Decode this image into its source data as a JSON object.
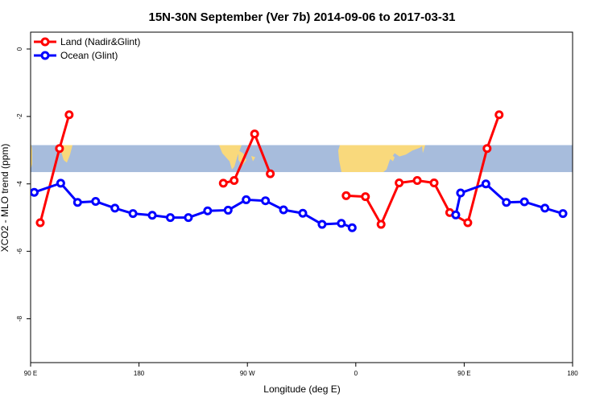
{
  "chart_data": {
    "type": "line",
    "title": "15N-30N September (Ver 7b)   2014-09-06 to 2017-03-31",
    "xlabel": "Longitude (deg E)",
    "ylabel": "XCO2 - MLO trend (ppm)",
    "xlim": [
      90,
      540
    ],
    "ylim": [
      -9.3,
      0.5
    ],
    "xticks": [
      {
        "value": 90,
        "label": "90 E"
      },
      {
        "value": 180,
        "label": "180"
      },
      {
        "value": 270,
        "label": "90 W"
      },
      {
        "value": 360,
        "label": "0"
      },
      {
        "value": 450,
        "label": "90 E"
      },
      {
        "value": 540,
        "label": "180"
      }
    ],
    "yticks": [
      {
        "value": 0,
        "label": "0"
      },
      {
        "value": -2,
        "label": "-2"
      },
      {
        "value": -4,
        "label": "-4"
      },
      {
        "value": -6,
        "label": "-6"
      },
      {
        "value": -8,
        "label": "-8"
      }
    ],
    "legend_position": "top-left",
    "map_band": {
      "y_top": -2.85,
      "y_bottom": -3.65,
      "ocean_color": "#a7bcdc",
      "land_color": "#f9d97c"
    },
    "series": [
      {
        "name": "Land (Nadir&Glint)",
        "color": "#ff0000",
        "segments": [
          [
            [
              98,
              -5.15
            ],
            [
              114,
              -2.95
            ],
            [
              122,
              -1.95
            ]
          ],
          [
            [
              250,
              -3.98
            ],
            [
              259,
              -3.9
            ],
            [
              276,
              -2.52
            ],
            [
              289,
              -3.7
            ]
          ],
          [
            [
              352,
              -4.35
            ],
            [
              368,
              -4.38
            ],
            [
              381,
              -5.2
            ],
            [
              396,
              -3.97
            ],
            [
              411,
              -3.9
            ],
            [
              425,
              -3.97
            ],
            [
              438,
              -4.85
            ],
            [
              453,
              -5.15
            ],
            [
              469,
              -2.95
            ],
            [
              479,
              -1.95
            ]
          ]
        ]
      },
      {
        "name": "Ocean (Glint)",
        "color": "#0000ff",
        "segments": [
          [
            [
              93,
              -4.25
            ],
            [
              115,
              -3.98
            ],
            [
              129,
              -4.55
            ],
            [
              144,
              -4.52
            ],
            [
              160,
              -4.72
            ],
            [
              175,
              -4.88
            ],
            [
              191,
              -4.93
            ],
            [
              206,
              -5.0
            ],
            [
              221,
              -5.0
            ],
            [
              237,
              -4.8
            ],
            [
              254,
              -4.78
            ],
            [
              269,
              -4.47
            ],
            [
              285,
              -4.5
            ],
            [
              300,
              -4.77
            ],
            [
              316,
              -4.87
            ],
            [
              332,
              -5.2
            ],
            [
              348,
              -5.17
            ],
            [
              357,
              -5.3
            ]
          ],
          [
            [
              443,
              -4.92
            ],
            [
              447,
              -4.27
            ],
            [
              468,
              -4.0
            ],
            [
              485,
              -4.55
            ],
            [
              500,
              -4.53
            ],
            [
              517,
              -4.72
            ],
            [
              532,
              -4.88
            ]
          ]
        ]
      }
    ]
  }
}
